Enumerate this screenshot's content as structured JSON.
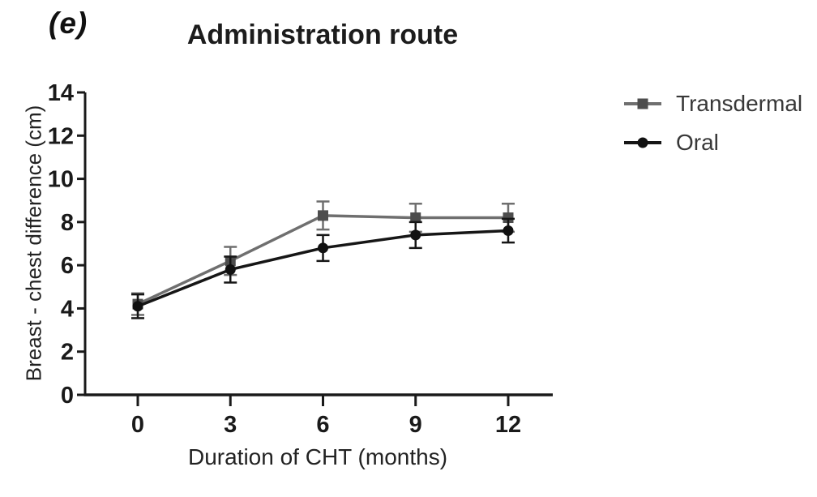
{
  "chart_data": {
    "type": "line",
    "panel_label": "(e)",
    "title": "Administration route",
    "xlabel": "Duration of CHT (months)",
    "ylabel": "Breast - chest difference (cm)",
    "x": [
      0,
      3,
      6,
      9,
      12
    ],
    "xticks": [
      0,
      3,
      6,
      9,
      12
    ],
    "yticks": [
      0,
      2,
      4,
      6,
      8,
      10,
      12,
      14
    ],
    "xlim": [
      -1.7,
      13.4
    ],
    "ylim": [
      0,
      14
    ],
    "grid": false,
    "error_bars": true,
    "legend_position": "right",
    "axis_color": "#1a1a1a",
    "background_color": "#ffffff",
    "series": [
      {
        "name": "Transdermal",
        "marker": "square",
        "color": "#6f6f6f",
        "marker_color": "#4d4d4d",
        "values": [
          4.2,
          6.2,
          8.3,
          8.2,
          8.2
        ],
        "errors": [
          0.5,
          0.65,
          0.65,
          0.65,
          0.65
        ]
      },
      {
        "name": "Oral",
        "marker": "circle",
        "color": "#161616",
        "marker_color": "#111111",
        "values": [
          4.1,
          5.8,
          6.8,
          7.4,
          7.6
        ],
        "errors": [
          0.55,
          0.6,
          0.6,
          0.6,
          0.55
        ]
      }
    ]
  }
}
